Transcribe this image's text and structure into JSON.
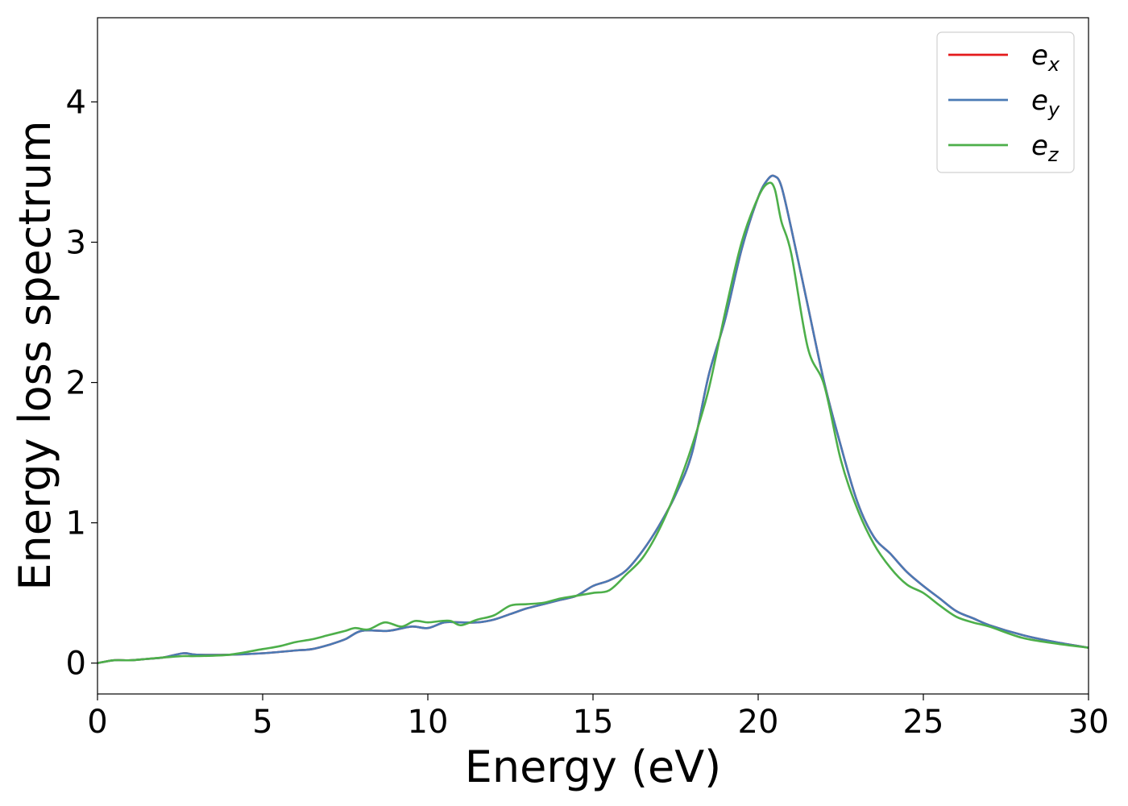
{
  "chart_data": {
    "type": "line",
    "xlabel": "Energy (eV)",
    "ylabel": "Energy loss spectrum",
    "xlim": [
      0,
      30
    ],
    "ylim": [
      -0.22,
      4.6
    ],
    "xticks": [
      "0",
      "5",
      "10",
      "15",
      "20",
      "25",
      "30"
    ],
    "yticks": [
      "0",
      "1",
      "2",
      "3",
      "4"
    ],
    "grid": false,
    "legend_position": "top-right",
    "series": [
      {
        "name": "e_x",
        "legend_base": "e",
        "legend_sub": "x",
        "color": "#e41a1c",
        "x": [
          0,
          0.5,
          1,
          1.5,
          2,
          2.6,
          3,
          4,
          5,
          6,
          6.5,
          7,
          7.5,
          8,
          8.8,
          9.5,
          10,
          10.5,
          11,
          11.5,
          12,
          12.5,
          13,
          13.5,
          14,
          14.5,
          15,
          15.5,
          16,
          16.5,
          17,
          17.5,
          18,
          18.5,
          19,
          19.5,
          20,
          20.3,
          20.5,
          20.7,
          21,
          21.5,
          22,
          22.5,
          23,
          23.5,
          24,
          24.5,
          25,
          25.5,
          26,
          26.5,
          27,
          28,
          29,
          30
        ],
        "y": [
          0.0,
          0.02,
          0.02,
          0.03,
          0.04,
          0.07,
          0.06,
          0.06,
          0.07,
          0.09,
          0.1,
          0.13,
          0.17,
          0.23,
          0.23,
          0.26,
          0.25,
          0.29,
          0.29,
          0.29,
          0.31,
          0.35,
          0.39,
          0.42,
          0.45,
          0.48,
          0.55,
          0.59,
          0.66,
          0.8,
          0.98,
          1.2,
          1.5,
          2.05,
          2.45,
          2.95,
          3.32,
          3.45,
          3.47,
          3.4,
          3.1,
          2.55,
          2.0,
          1.55,
          1.15,
          0.9,
          0.78,
          0.65,
          0.55,
          0.46,
          0.37,
          0.32,
          0.27,
          0.2,
          0.15,
          0.11
        ]
      },
      {
        "name": "e_y",
        "legend_base": "e",
        "legend_sub": "y",
        "color": "#4a7ab5",
        "x": [
          0,
          0.5,
          1,
          1.5,
          2,
          2.6,
          3,
          4,
          5,
          6,
          6.5,
          7,
          7.5,
          8,
          8.8,
          9.5,
          10,
          10.5,
          11,
          11.5,
          12,
          12.5,
          13,
          13.5,
          14,
          14.5,
          15,
          15.5,
          16,
          16.5,
          17,
          17.5,
          18,
          18.5,
          19,
          19.5,
          20,
          20.3,
          20.5,
          20.7,
          21,
          21.5,
          22,
          22.5,
          23,
          23.5,
          24,
          24.5,
          25,
          25.5,
          26,
          26.5,
          27,
          28,
          29,
          30
        ],
        "y": [
          0.0,
          0.02,
          0.02,
          0.03,
          0.04,
          0.07,
          0.06,
          0.06,
          0.07,
          0.09,
          0.1,
          0.13,
          0.17,
          0.23,
          0.23,
          0.26,
          0.25,
          0.29,
          0.29,
          0.29,
          0.31,
          0.35,
          0.39,
          0.42,
          0.45,
          0.48,
          0.55,
          0.59,
          0.66,
          0.8,
          0.98,
          1.2,
          1.5,
          2.05,
          2.45,
          2.95,
          3.32,
          3.45,
          3.47,
          3.4,
          3.1,
          2.55,
          2.0,
          1.55,
          1.15,
          0.9,
          0.78,
          0.65,
          0.55,
          0.46,
          0.37,
          0.32,
          0.27,
          0.2,
          0.15,
          0.11
        ]
      },
      {
        "name": "e_z",
        "legend_base": "e",
        "legend_sub": "z",
        "color": "#4daf4a",
        "x": [
          0,
          0.5,
          1,
          1.5,
          2,
          2.6,
          3,
          4,
          5,
          5.5,
          6,
          6.5,
          7,
          7.5,
          7.8,
          8.2,
          8.7,
          9.2,
          9.6,
          10,
          10.4,
          10.7,
          11,
          11.5,
          12,
          12.5,
          13,
          13.5,
          14,
          14.5,
          15,
          15.5,
          16,
          16.5,
          17,
          17.5,
          18,
          18.5,
          19,
          19.5,
          20,
          20.3,
          20.5,
          20.7,
          21,
          21.5,
          22,
          22.5,
          23,
          23.5,
          24,
          24.5,
          25,
          25.5,
          26,
          26.5,
          27,
          28,
          29,
          30
        ],
        "y": [
          0.0,
          0.02,
          0.02,
          0.03,
          0.04,
          0.05,
          0.05,
          0.06,
          0.1,
          0.12,
          0.15,
          0.17,
          0.2,
          0.23,
          0.25,
          0.24,
          0.29,
          0.26,
          0.3,
          0.29,
          0.3,
          0.3,
          0.27,
          0.31,
          0.34,
          0.41,
          0.42,
          0.43,
          0.46,
          0.48,
          0.5,
          0.52,
          0.63,
          0.75,
          0.95,
          1.22,
          1.55,
          1.95,
          2.5,
          3.0,
          3.32,
          3.42,
          3.38,
          3.15,
          2.92,
          2.25,
          1.98,
          1.45,
          1.1,
          0.85,
          0.68,
          0.56,
          0.5,
          0.41,
          0.33,
          0.29,
          0.26,
          0.18,
          0.14,
          0.11
        ]
      }
    ]
  }
}
